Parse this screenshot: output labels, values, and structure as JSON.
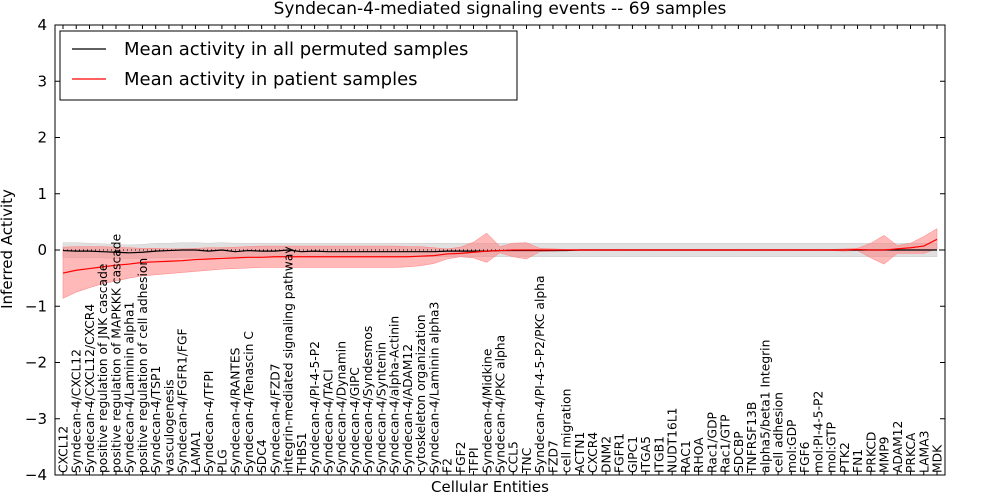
{
  "chart_data": {
    "type": "line",
    "title": "Syndecan-4-mediated signaling events -- 69 samples",
    "xlabel": "Cellular Entities",
    "ylabel": "Inferred Activity",
    "ylim": [
      -4,
      4
    ],
    "yticks": [
      -4,
      -3,
      -2,
      -1,
      0,
      1,
      2,
      3,
      4
    ],
    "grid": false,
    "legend_position": "top-left",
    "categories": [
      "CXCL12",
      "Syndecan-4/CXCL12",
      "Syndecan-4/CXCL12/CXCR4",
      "positive regulation of JNK cascade",
      "positive regulation of MAPKKK cascade",
      "Syndecan-4/Laminin alpha1",
      "positive regulation of cell adhesion",
      "Syndecan-4/TSP1",
      "vasculogenesis",
      "Syndecan-4/FGFR1/FGF",
      "LAMA1",
      "Syndecan-4/TFPI",
      "PLG",
      "Syndecan-4/RANTES",
      "Syndecan-4/Tenascin C",
      "SDC4",
      "Syndecan-4/FZD7",
      "integrin-mediated signaling pathway",
      "THBS1",
      "Syndecan-4/PI-4-5-P2",
      "Syndecan-4/TACI",
      "Syndecan-4/Dynamin",
      "Syndecan-4/GIPC",
      "Syndecan-4/Syndesmos",
      "Syndecan-4/Syntenin",
      "Syndecan-4/alpha-Actinin",
      "Syndecan-4/ADAM12",
      "cytoskeleton organization",
      "Syndecan-4/Laminin alpha3",
      "F2",
      "FGF2",
      "TFPI",
      "Syndecan-4/Midkine",
      "Syndecan-4/PKC alpha",
      "CCL5",
      "TNC",
      "Syndecan-4/PI-4-5-P2/PKC alpha",
      "FZD7",
      "cell migration",
      "ACTN1",
      "CXCR4",
      "DNM2",
      "FGFR1",
      "GIPC1",
      "ITGA5",
      "ITGB1",
      "NUDT16L1",
      "RAC1",
      "RHOA",
      "Rac1/GDP",
      "Rac1/GTP",
      "SDCBP",
      "TNFRSF13B",
      "alpha5/beta1 Integrin",
      "cell adhesion",
      "mol:GDP",
      "FGF6",
      "mol:PI-4-5-P2",
      "mol:GTP",
      "PTK2",
      "FN1",
      "PRKCD",
      "MMP9",
      "ADAM12",
      "PRKCA",
      "LAMA3",
      "MDK"
    ],
    "series": [
      {
        "name": "Mean activity in all permuted samples",
        "color": "#000000",
        "values": [
          -0.01,
          -0.02,
          -0.02,
          -0.03,
          -0.04,
          -0.05,
          -0.04,
          -0.02,
          -0.01,
          0.0,
          0.0,
          -0.02,
          0.0,
          -0.03,
          -0.01,
          -0.02,
          -0.02,
          0.0,
          -0.03,
          -0.02,
          -0.03,
          -0.03,
          -0.03,
          -0.03,
          -0.03,
          -0.03,
          -0.03,
          -0.03,
          -0.03,
          -0.02,
          -0.02,
          -0.02,
          -0.02,
          -0.01,
          -0.01,
          -0.01,
          -0.01,
          -0.01,
          -0.01,
          0.0,
          0.0,
          0.0,
          0.0,
          0.0,
          0.0,
          0.0,
          0.0,
          0.0,
          0.0,
          0.0,
          0.0,
          0.0,
          0.0,
          0.0,
          0.0,
          0.0,
          0.0,
          0.0,
          0.0,
          0.0,
          0.0,
          0.0,
          0.0,
          0.0,
          0.0,
          0.0,
          0.0
        ],
        "band_low": [
          -0.13,
          -0.14,
          -0.14,
          -0.14,
          -0.15,
          -0.15,
          -0.15,
          -0.14,
          -0.14,
          -0.13,
          -0.13,
          -0.13,
          -0.12,
          -0.12,
          -0.12,
          -0.12,
          -0.12,
          -0.12,
          -0.12,
          -0.12,
          -0.12,
          -0.12,
          -0.12,
          -0.12,
          -0.12,
          -0.12,
          -0.12,
          -0.12,
          -0.12,
          -0.12,
          -0.12,
          -0.12,
          -0.12,
          -0.12,
          -0.12,
          -0.12,
          -0.12,
          -0.12,
          -0.12,
          -0.12,
          -0.12,
          -0.12,
          -0.12,
          -0.12,
          -0.12,
          -0.12,
          -0.12,
          -0.12,
          -0.12,
          -0.12,
          -0.12,
          -0.12,
          -0.12,
          -0.12,
          -0.12,
          -0.12,
          -0.12,
          -0.12,
          -0.12,
          -0.12,
          -0.12,
          -0.12,
          -0.12,
          -0.12,
          -0.12,
          -0.12,
          -0.12
        ],
        "band_high": [
          0.13,
          0.13,
          0.12,
          0.11,
          0.1,
          0.09,
          0.1,
          0.12,
          0.12,
          0.13,
          0.13,
          0.12,
          0.13,
          0.12,
          0.12,
          0.12,
          0.12,
          0.12,
          0.12,
          0.12,
          0.12,
          0.12,
          0.12,
          0.12,
          0.12,
          0.12,
          0.12,
          0.12,
          0.12,
          0.12,
          0.12,
          0.12,
          0.12,
          0.12,
          0.12,
          0.12,
          0.12,
          0.12,
          0.12,
          0.12,
          0.12,
          0.12,
          0.12,
          0.12,
          0.12,
          0.12,
          0.12,
          0.12,
          0.12,
          0.12,
          0.12,
          0.12,
          0.12,
          0.12,
          0.12,
          0.12,
          0.12,
          0.12,
          0.12,
          0.12,
          0.12,
          0.12,
          0.12,
          0.12,
          0.12,
          0.12,
          0.12
        ]
      },
      {
        "name": "Mean activity in patient samples",
        "color": "#ff0000",
        "values": [
          -0.41,
          -0.36,
          -0.33,
          -0.3,
          -0.27,
          -0.25,
          -0.22,
          -0.21,
          -0.2,
          -0.19,
          -0.17,
          -0.16,
          -0.15,
          -0.14,
          -0.13,
          -0.13,
          -0.12,
          -0.12,
          -0.12,
          -0.12,
          -0.12,
          -0.12,
          -0.12,
          -0.12,
          -0.12,
          -0.12,
          -0.12,
          -0.11,
          -0.1,
          -0.07,
          -0.06,
          -0.04,
          -0.02,
          -0.01,
          0.0,
          0.0,
          0.0,
          0.0,
          0.0,
          0.0,
          0.0,
          0.0,
          0.0,
          0.0,
          0.0,
          0.0,
          0.0,
          0.0,
          0.0,
          0.0,
          0.0,
          0.0,
          0.0,
          0.0,
          0.0,
          0.0,
          0.0,
          0.0,
          0.0,
          0.0,
          0.01,
          0.0,
          0.0,
          0.02,
          0.04,
          0.07,
          0.19
        ],
        "band_low": [
          -0.86,
          -0.75,
          -0.67,
          -0.6,
          -0.55,
          -0.5,
          -0.46,
          -0.44,
          -0.42,
          -0.4,
          -0.38,
          -0.36,
          -0.34,
          -0.33,
          -0.32,
          -0.31,
          -0.31,
          -0.31,
          -0.31,
          -0.31,
          -0.31,
          -0.31,
          -0.31,
          -0.31,
          -0.31,
          -0.31,
          -0.3,
          -0.28,
          -0.24,
          -0.16,
          -0.12,
          -0.14,
          -0.22,
          -0.05,
          -0.12,
          -0.16,
          -0.03,
          -0.02,
          -0.01,
          -0.01,
          -0.01,
          -0.01,
          -0.01,
          -0.01,
          -0.01,
          -0.01,
          -0.01,
          -0.01,
          -0.01,
          -0.01,
          -0.01,
          -0.01,
          -0.01,
          -0.01,
          -0.01,
          -0.01,
          -0.01,
          -0.01,
          -0.01,
          -0.02,
          -0.01,
          -0.14,
          -0.25,
          -0.06,
          -0.06,
          -0.06,
          0.02
        ],
        "band_high": [
          0.05,
          0.06,
          0.06,
          0.06,
          0.05,
          0.04,
          0.03,
          0.03,
          0.02,
          0.02,
          0.03,
          0.04,
          0.04,
          0.05,
          0.06,
          0.07,
          0.07,
          0.07,
          0.07,
          0.07,
          0.07,
          0.07,
          0.07,
          0.07,
          0.07,
          0.07,
          0.06,
          0.06,
          0.04,
          0.02,
          0.05,
          0.14,
          0.3,
          0.06,
          0.12,
          0.13,
          0.03,
          0.02,
          0.01,
          0.01,
          0.01,
          0.01,
          0.01,
          0.01,
          0.01,
          0.01,
          0.01,
          0.01,
          0.01,
          0.01,
          0.01,
          0.01,
          0.01,
          0.01,
          0.01,
          0.01,
          0.01,
          0.01,
          0.01,
          0.02,
          0.03,
          0.12,
          0.26,
          0.08,
          0.12,
          0.24,
          0.38
        ]
      }
    ],
    "band_colors": [
      "#cccccc",
      "#ff7f7f"
    ]
  }
}
